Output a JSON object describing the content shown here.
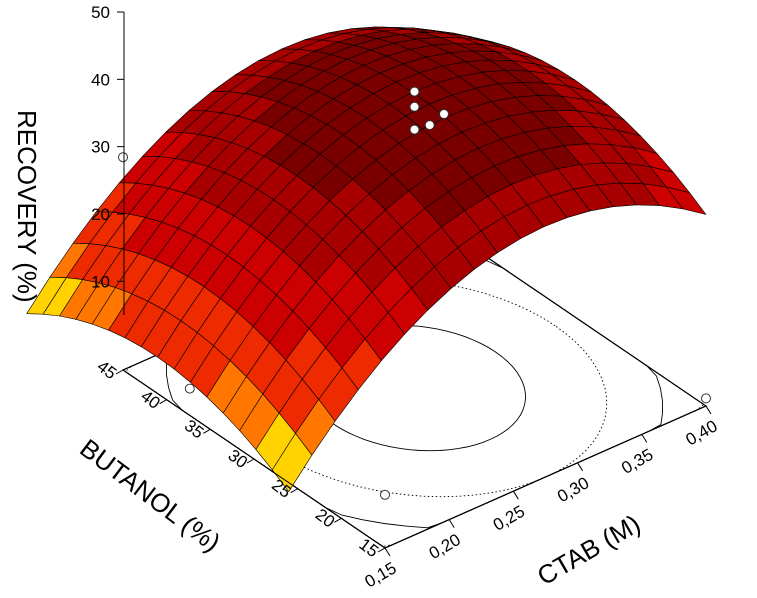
{
  "chart_data": {
    "type": "surface3d",
    "title": "",
    "xlabel": "CTAB (M)",
    "ylabel": "BUTANOL (%)",
    "zlabel": "RECOVERY (%)",
    "x_ticks": [
      "0,15",
      "0,20",
      "0,25",
      "0,30",
      "0,35",
      "0,40"
    ],
    "y_ticks": [
      "15",
      "20",
      "25",
      "30",
      "35",
      "40",
      "45"
    ],
    "z_ticks": [
      "10",
      "20",
      "30",
      "40",
      "50"
    ],
    "xlim": [
      0.15,
      0.4
    ],
    "ylim": [
      15,
      45
    ],
    "zlim": [
      5,
      50
    ],
    "surface_model": {
      "peak": {
        "ctab": 0.275,
        "butanol": 30,
        "recovery": 44
      },
      "a": 500,
      "b": 0.0266,
      "floor": 5
    },
    "color_bands": [
      {
        "min": 40,
        "color": "#7a0000"
      },
      {
        "min": 35,
        "color": "#a80000"
      },
      {
        "min": 30,
        "color": "#cc0000"
      },
      {
        "min": 25,
        "color": "#ee2a00"
      },
      {
        "min": 22,
        "color": "#ff7700"
      },
      {
        "min": 19,
        "color": "#ffd200"
      },
      {
        "min": 16,
        "color": "#c8f000"
      },
      {
        "min": 13,
        "color": "#38d800"
      },
      {
        "min": 9,
        "color": "#1ca030"
      },
      {
        "min": 0,
        "color": "#0e5c3c"
      }
    ],
    "points": [
      {
        "ctab": 0.275,
        "butanol": 30,
        "recovery": 44
      },
      {
        "ctab": 0.275,
        "butanol": 30,
        "recovery": 42
      },
      {
        "ctab": 0.275,
        "butanol": 30,
        "recovery": 39
      },
      {
        "ctab": 0.28,
        "butanol": 29,
        "recovery": 40
      },
      {
        "ctab": 0.15,
        "butanol": 45,
        "recovery": 33
      },
      {
        "ctab": 0.15,
        "butanol": 15,
        "recovery": 12
      },
      {
        "ctab": 0.4,
        "butanol": 45,
        "recovery": 20
      },
      {
        "ctab": 0.4,
        "butanol": 15,
        "recovery": 6
      },
      {
        "ctab": 0.1,
        "butanol": 30,
        "recovery": 18
      }
    ],
    "grid": false
  }
}
